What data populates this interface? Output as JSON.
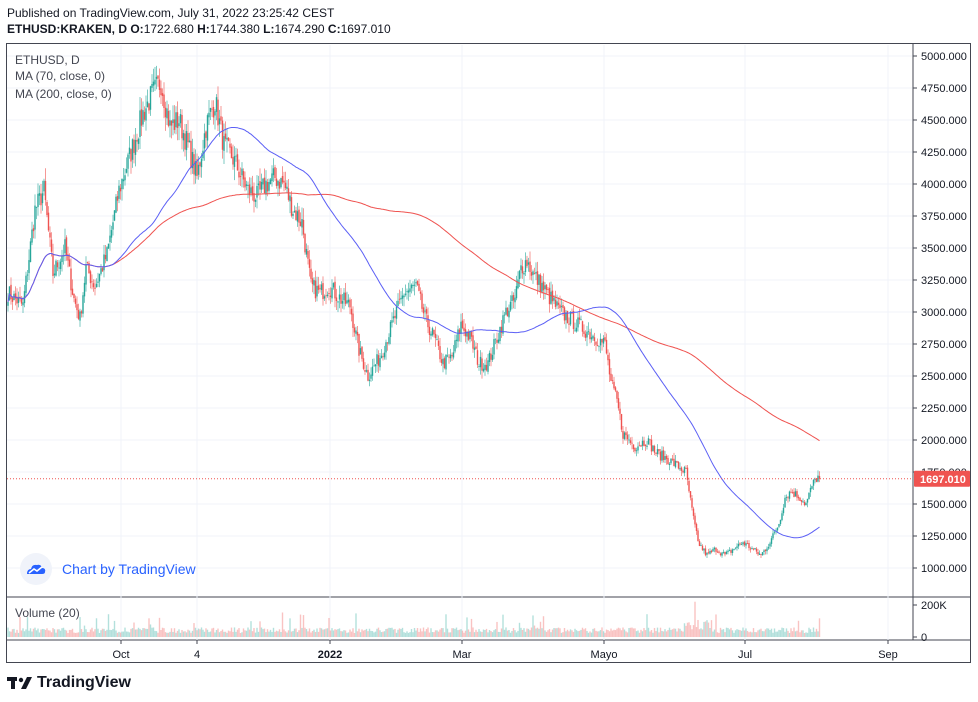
{
  "header": {
    "published": "Published on TradingView.com, July 31, 2022 23:25:42 CEST",
    "symbol": "ETHUSD:KRAKEN, D",
    "open_label": "O:",
    "open": "1722.680",
    "high_label": "H:",
    "high": "1744.380",
    "low_label": "L:",
    "low": "1674.290",
    "close_label": "C:",
    "close": "1697.010"
  },
  "legend": {
    "symbol": "ETHUSD, D",
    "ma70": "MA (70, close, 0)",
    "ma200": "MA (200, close, 0)",
    "volume": "Volume (20)"
  },
  "watermark": "Chart by TradingView",
  "footer": "TradingView",
  "colors": {
    "up": "#26a69a",
    "down": "#ef5350",
    "ma70": "#5b5ff5",
    "ma200": "#ef5350",
    "price_line": "#ef5350",
    "price_tag": "#ef5350"
  },
  "chart_data": {
    "type": "candlestick",
    "x_tick_labels": [
      "Oct",
      "4",
      "2022",
      "Mar",
      "Mayo",
      "Jul",
      "Sep"
    ],
    "y_tick_labels": [
      "1000.000",
      "1250.000",
      "1500.000",
      "1750.000",
      "2000.000",
      "2250.000",
      "2500.000",
      "2750.000",
      "3000.000",
      "3250.000",
      "3500.000",
      "3750.000",
      "4000.000",
      "4250.000",
      "4500.000",
      "4750.000",
      "5000.000"
    ],
    "ylim": [
      850,
      5050
    ],
    "last_price": 1697.01,
    "last_price_label": "1697.010",
    "volume_tick_labels": [
      "200K",
      "0"
    ],
    "volume_ylim": [
      0,
      230000
    ],
    "close_anchors": [
      [
        0,
        3150
      ],
      [
        10,
        3050
      ],
      [
        18,
        3800
      ],
      [
        24,
        3950
      ],
      [
        30,
        3300
      ],
      [
        38,
        3500
      ],
      [
        44,
        3100
      ],
      [
        48,
        2950
      ],
      [
        52,
        3350
      ],
      [
        58,
        3200
      ],
      [
        66,
        3450
      ],
      [
        74,
        3950
      ],
      [
        82,
        4250
      ],
      [
        90,
        4550
      ],
      [
        96,
        4700
      ],
      [
        102,
        4800
      ],
      [
        108,
        4450
      ],
      [
        114,
        4500
      ],
      [
        120,
        4300
      ],
      [
        126,
        4050
      ],
      [
        132,
        4450
      ],
      [
        138,
        4650
      ],
      [
        144,
        4300
      ],
      [
        150,
        4200
      ],
      [
        156,
        4050
      ],
      [
        160,
        3950
      ],
      [
        166,
        3900
      ],
      [
        172,
        4000
      ],
      [
        178,
        4050
      ],
      [
        184,
        4000
      ],
      [
        190,
        3800
      ],
      [
        196,
        3700
      ],
      [
        202,
        3200
      ],
      [
        208,
        3150
      ],
      [
        214,
        3200
      ],
      [
        222,
        3100
      ],
      [
        228,
        3050
      ],
      [
        234,
        2700
      ],
      [
        240,
        2500
      ],
      [
        248,
        2650
      ],
      [
        256,
        2900
      ],
      [
        264,
        3150
      ],
      [
        272,
        3200
      ],
      [
        278,
        2950
      ],
      [
        284,
        2800
      ],
      [
        290,
        2600
      ],
      [
        296,
        2650
      ],
      [
        302,
        2900
      ],
      [
        308,
        2800
      ],
      [
        314,
        2600
      ],
      [
        320,
        2600
      ],
      [
        326,
        2800
      ],
      [
        332,
        3000
      ],
      [
        338,
        3100
      ],
      [
        342,
        3350
      ],
      [
        346,
        3400
      ],
      [
        350,
        3300
      ],
      [
        356,
        3200
      ],
      [
        362,
        3100
      ],
      [
        368,
        3000
      ],
      [
        374,
        2950
      ],
      [
        380,
        2900
      ],
      [
        386,
        2850
      ],
      [
        392,
        2800
      ],
      [
        398,
        2750
      ],
      [
        402,
        2450
      ],
      [
        406,
        2300
      ],
      [
        410,
        2050
      ],
      [
        418,
        1950
      ],
      [
        426,
        2000
      ],
      [
        432,
        1900
      ],
      [
        440,
        1850
      ],
      [
        446,
        1800
      ],
      [
        452,
        1750
      ],
      [
        456,
        1450
      ],
      [
        460,
        1200
      ],
      [
        466,
        1100
      ],
      [
        472,
        1150
      ],
      [
        478,
        1100
      ],
      [
        484,
        1150
      ],
      [
        490,
        1200
      ],
      [
        496,
        1150
      ],
      [
        502,
        1100
      ],
      [
        508,
        1200
      ],
      [
        514,
        1350
      ],
      [
        518,
        1550
      ],
      [
        522,
        1600
      ],
      [
        528,
        1550
      ],
      [
        532,
        1500
      ],
      [
        536,
        1640
      ],
      [
        540,
        1722
      ]
    ],
    "candle_count": 542,
    "ma70_range": [
      0,
      540
    ],
    "ma200_range": [
      0,
      540
    ]
  }
}
